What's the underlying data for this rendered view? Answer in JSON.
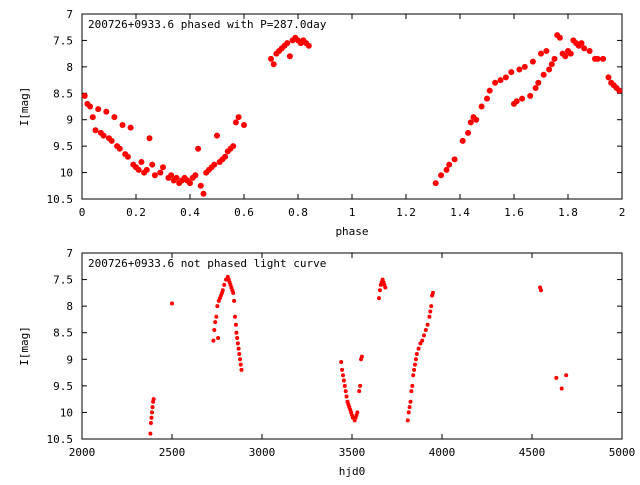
{
  "colors": {
    "points": "#ff0000",
    "axes": "#000000",
    "background": "#ffffff"
  },
  "chart_data": [
    {
      "type": "scatter",
      "title": "200726+0933.6 phased with P=287.0day",
      "xlabel": "phase",
      "ylabel": "I[mag]",
      "xlim": [
        0,
        2
      ],
      "ylim": [
        7,
        10.5
      ],
      "y_inverted": true,
      "grid": false,
      "x_ticks": [
        "0",
        "0.2",
        "0.4",
        "0.6",
        "0.8",
        "1",
        "1.2",
        "1.4",
        "1.6",
        "1.8",
        "2"
      ],
      "y_ticks": [
        "7",
        "7.5",
        "8",
        "8.5",
        "9",
        "9.5",
        "10",
        "10.5"
      ],
      "series": [
        {
          "points": [
            [
              0.01,
              8.55
            ],
            [
              0.02,
              8.7
            ],
            [
              0.03,
              8.75
            ],
            [
              0.04,
              8.95
            ],
            [
              0.05,
              9.2
            ],
            [
              0.06,
              8.8
            ],
            [
              0.07,
              9.25
            ],
            [
              0.08,
              9.3
            ],
            [
              0.09,
              8.85
            ],
            [
              0.1,
              9.35
            ],
            [
              0.11,
              9.4
            ],
            [
              0.12,
              8.95
            ],
            [
              0.13,
              9.5
            ],
            [
              0.14,
              9.55
            ],
            [
              0.15,
              9.1
            ],
            [
              0.16,
              9.65
            ],
            [
              0.17,
              9.7
            ],
            [
              0.18,
              9.15
            ],
            [
              0.19,
              9.85
            ],
            [
              0.2,
              9.9
            ],
            [
              0.21,
              9.95
            ],
            [
              0.22,
              9.8
            ],
            [
              0.23,
              10.0
            ],
            [
              0.24,
              9.95
            ],
            [
              0.25,
              9.35
            ],
            [
              0.26,
              9.85
            ],
            [
              0.27,
              10.05
            ],
            [
              0.29,
              10.0
            ],
            [
              0.3,
              9.9
            ],
            [
              0.32,
              10.1
            ],
            [
              0.33,
              10.05
            ],
            [
              0.34,
              10.15
            ],
            [
              0.35,
              10.1
            ],
            [
              0.36,
              10.2
            ],
            [
              0.37,
              10.15
            ],
            [
              0.38,
              10.1
            ],
            [
              0.39,
              10.15
            ],
            [
              0.4,
              10.2
            ],
            [
              0.41,
              10.1
            ],
            [
              0.42,
              10.05
            ],
            [
              0.43,
              9.55
            ],
            [
              0.44,
              10.25
            ],
            [
              0.45,
              10.4
            ],
            [
              0.46,
              10.0
            ],
            [
              0.47,
              9.95
            ],
            [
              0.48,
              9.9
            ],
            [
              0.49,
              9.85
            ],
            [
              0.5,
              9.3
            ],
            [
              0.51,
              9.8
            ],
            [
              0.52,
              9.75
            ],
            [
              0.53,
              9.7
            ],
            [
              0.54,
              9.6
            ],
            [
              0.55,
              9.55
            ],
            [
              0.56,
              9.5
            ],
            [
              0.57,
              9.05
            ],
            [
              0.58,
              8.95
            ],
            [
              0.6,
              9.1
            ],
            [
              0.7,
              7.85
            ],
            [
              0.71,
              7.95
            ],
            [
              0.72,
              7.75
            ],
            [
              0.73,
              7.7
            ],
            [
              0.74,
              7.65
            ],
            [
              0.75,
              7.6
            ],
            [
              0.76,
              7.55
            ],
            [
              0.77,
              7.8
            ],
            [
              0.78,
              7.5
            ],
            [
              0.79,
              7.45
            ],
            [
              0.8,
              7.5
            ],
            [
              0.81,
              7.55
            ],
            [
              0.82,
              7.5
            ],
            [
              0.83,
              7.55
            ],
            [
              0.84,
              7.6
            ],
            [
              1.31,
              10.2
            ],
            [
              1.33,
              10.05
            ],
            [
              1.35,
              9.95
            ],
            [
              1.36,
              9.85
            ],
            [
              1.38,
              9.75
            ],
            [
              1.41,
              9.4
            ],
            [
              1.43,
              9.25
            ],
            [
              1.44,
              9.05
            ],
            [
              1.45,
              8.95
            ],
            [
              1.46,
              9.0
            ],
            [
              1.48,
              8.75
            ],
            [
              1.5,
              8.6
            ],
            [
              1.51,
              8.45
            ],
            [
              1.53,
              8.3
            ],
            [
              1.55,
              8.25
            ],
            [
              1.57,
              8.2
            ],
            [
              1.59,
              8.1
            ],
            [
              1.6,
              8.7
            ],
            [
              1.61,
              8.65
            ],
            [
              1.62,
              8.05
            ],
            [
              1.63,
              8.6
            ],
            [
              1.64,
              8.0
            ],
            [
              1.66,
              8.55
            ],
            [
              1.67,
              7.9
            ],
            [
              1.68,
              8.4
            ],
            [
              1.69,
              8.3
            ],
            [
              1.7,
              7.75
            ],
            [
              1.71,
              8.15
            ],
            [
              1.72,
              7.7
            ],
            [
              1.73,
              8.05
            ],
            [
              1.74,
              7.95
            ],
            [
              1.75,
              7.85
            ],
            [
              1.76,
              7.4
            ],
            [
              1.77,
              7.45
            ],
            [
              1.78,
              7.75
            ],
            [
              1.79,
              7.8
            ],
            [
              1.8,
              7.7
            ],
            [
              1.81,
              7.75
            ],
            [
              1.82,
              7.5
            ],
            [
              1.83,
              7.55
            ],
            [
              1.84,
              7.6
            ],
            [
              1.85,
              7.55
            ],
            [
              1.86,
              7.65
            ],
            [
              1.88,
              7.7
            ],
            [
              1.9,
              7.85
            ],
            [
              1.91,
              7.85
            ],
            [
              1.93,
              7.85
            ],
            [
              1.95,
              8.2
            ],
            [
              1.96,
              8.3
            ],
            [
              1.97,
              8.35
            ],
            [
              1.98,
              8.4
            ],
            [
              1.99,
              8.45
            ]
          ]
        }
      ]
    },
    {
      "type": "scatter",
      "title": "200726+0933.6 not phased light curve",
      "xlabel": "hjd0",
      "ylabel": "I[mag]",
      "xlim": [
        2000,
        5000
      ],
      "ylim": [
        7,
        10.5
      ],
      "y_inverted": true,
      "grid": false,
      "x_ticks": [
        "2000",
        "2500",
        "3000",
        "3500",
        "4000",
        "4500",
        "5000"
      ],
      "y_ticks": [
        "7",
        "7.5",
        "8",
        "8.5",
        "9",
        "9.5",
        "10",
        "10.5"
      ],
      "series": [
        {
          "points": [
            [
              2380,
              10.4
            ],
            [
              2383,
              10.2
            ],
            [
              2386,
              10.1
            ],
            [
              2389,
              10.0
            ],
            [
              2392,
              9.9
            ],
            [
              2395,
              9.8
            ],
            [
              2398,
              9.75
            ],
            [
              2500,
              7.95
            ],
            [
              2730,
              8.65
            ],
            [
              2735,
              8.45
            ],
            [
              2740,
              8.3
            ],
            [
              2746,
              8.2
            ],
            [
              2752,
              8.0
            ],
            [
              2756,
              8.6
            ],
            [
              2760,
              7.9
            ],
            [
              2766,
              7.85
            ],
            [
              2772,
              7.8
            ],
            [
              2778,
              7.75
            ],
            [
              2782,
              7.7
            ],
            [
              2790,
              7.6
            ],
            [
              2800,
              7.5
            ],
            [
              2810,
              7.45
            ],
            [
              2815,
              7.5
            ],
            [
              2820,
              7.55
            ],
            [
              2825,
              7.6
            ],
            [
              2830,
              7.65
            ],
            [
              2835,
              7.7
            ],
            [
              2840,
              7.75
            ],
            [
              2845,
              7.9
            ],
            [
              2850,
              8.2
            ],
            [
              2855,
              8.35
            ],
            [
              2858,
              8.5
            ],
            [
              2862,
              8.6
            ],
            [
              2866,
              8.7
            ],
            [
              2870,
              8.8
            ],
            [
              2874,
              8.9
            ],
            [
              2878,
              9.0
            ],
            [
              2882,
              9.1
            ],
            [
              2886,
              9.2
            ],
            [
              3440,
              9.05
            ],
            [
              3445,
              9.2
            ],
            [
              3450,
              9.3
            ],
            [
              3455,
              9.4
            ],
            [
              3460,
              9.5
            ],
            [
              3465,
              9.6
            ],
            [
              3470,
              9.7
            ],
            [
              3475,
              9.8
            ],
            [
              3480,
              9.85
            ],
            [
              3485,
              9.9
            ],
            [
              3490,
              9.95
            ],
            [
              3495,
              10.0
            ],
            [
              3500,
              10.05
            ],
            [
              3505,
              10.1
            ],
            [
              3510,
              10.1
            ],
            [
              3515,
              10.15
            ],
            [
              3520,
              10.1
            ],
            [
              3525,
              10.05
            ],
            [
              3530,
              10.0
            ],
            [
              3540,
              9.6
            ],
            [
              3545,
              9.5
            ],
            [
              3550,
              9.0
            ],
            [
              3555,
              8.95
            ],
            [
              3650,
              7.85
            ],
            [
              3655,
              7.7
            ],
            [
              3660,
              7.6
            ],
            [
              3665,
              7.55
            ],
            [
              3670,
              7.5
            ],
            [
              3675,
              7.55
            ],
            [
              3680,
              7.6
            ],
            [
              3685,
              7.65
            ],
            [
              3810,
              10.15
            ],
            [
              3815,
              10.0
            ],
            [
              3820,
              9.9
            ],
            [
              3825,
              9.8
            ],
            [
              3830,
              9.6
            ],
            [
              3835,
              9.5
            ],
            [
              3840,
              9.3
            ],
            [
              3845,
              9.2
            ],
            [
              3850,
              9.1
            ],
            [
              3855,
              9.0
            ],
            [
              3860,
              8.9
            ],
            [
              3870,
              8.8
            ],
            [
              3880,
              8.7
            ],
            [
              3890,
              8.65
            ],
            [
              3900,
              8.55
            ],
            [
              3910,
              8.45
            ],
            [
              3920,
              8.35
            ],
            [
              3930,
              8.2
            ],
            [
              3935,
              8.1
            ],
            [
              3940,
              8.0
            ],
            [
              3945,
              7.8
            ],
            [
              3950,
              7.75
            ],
            [
              4545,
              7.65
            ],
            [
              4550,
              7.7
            ],
            [
              4635,
              9.35
            ],
            [
              4665,
              9.55
            ],
            [
              4690,
              9.3
            ]
          ]
        }
      ]
    }
  ]
}
